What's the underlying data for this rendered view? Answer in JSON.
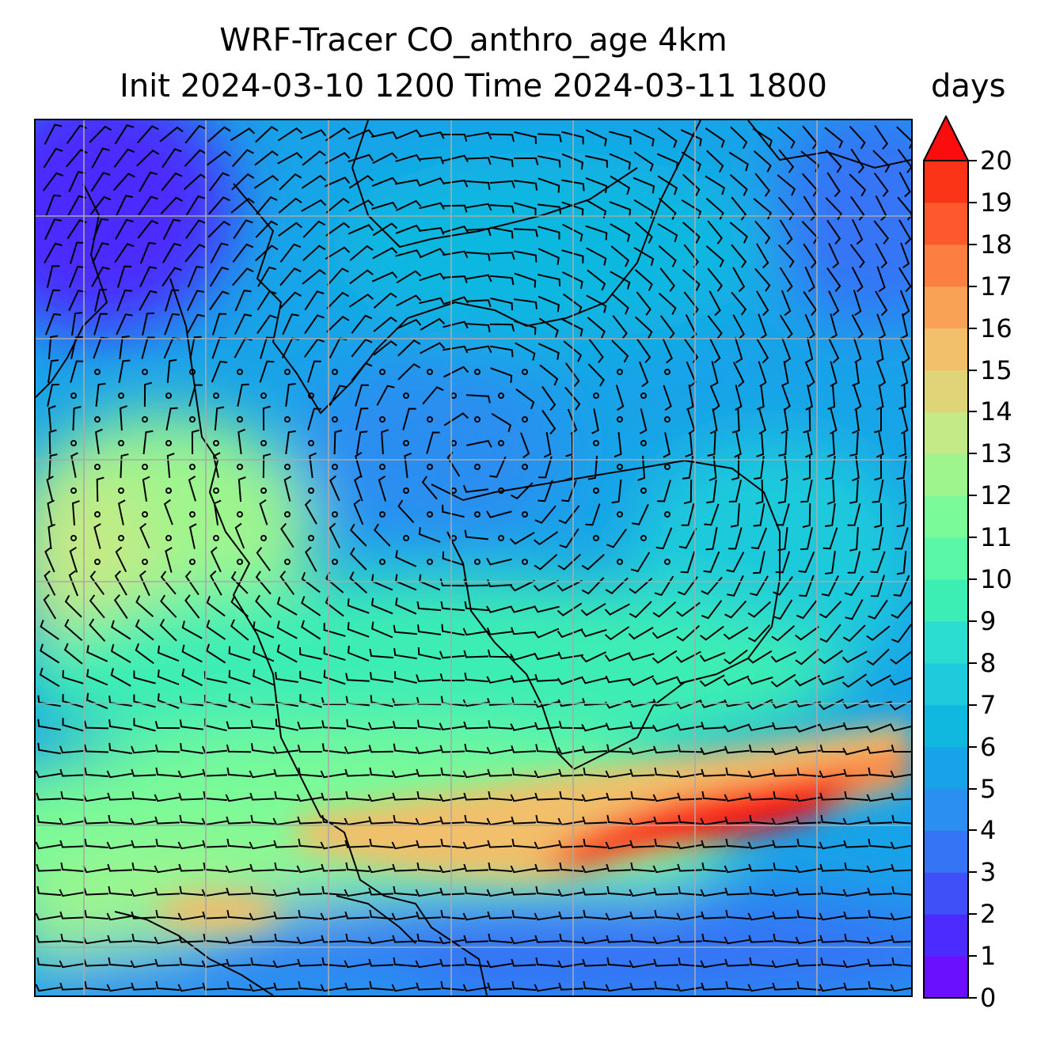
{
  "title": {
    "line1": "WRF-Tracer CO_anthro_age 4km",
    "line2": "Init 2024-03-10 1200 Time 2024-03-11 1800"
  },
  "colorbar": {
    "units": "days",
    "min": 0,
    "max": 20,
    "ticks": [
      "0",
      "1",
      "2",
      "3",
      "4",
      "5",
      "6",
      "7",
      "8",
      "9",
      "10",
      "11",
      "12",
      "13",
      "14",
      "15",
      "16",
      "17",
      "18",
      "19",
      "20"
    ],
    "extend": "max",
    "colormap": [
      "#6a10ff",
      "#4b2bff",
      "#3f50f8",
      "#3674f6",
      "#2b8ef1",
      "#18a3e8",
      "#10b8e0",
      "#1ecadb",
      "#2bdcd0",
      "#3ceeb4",
      "#5af7a6",
      "#7afa98",
      "#9ef58e",
      "#c3ea86",
      "#dfd478",
      "#f2bf6a",
      "#f9a255",
      "#fc7e40",
      "#fc5a2c",
      "#fb3418",
      "#fc0d0d"
    ]
  },
  "map": {
    "field": "CO_anthro_age",
    "field_units": "days",
    "overlays": [
      "wind barbs",
      "coastlines",
      "lat-lon gridlines"
    ]
  }
}
